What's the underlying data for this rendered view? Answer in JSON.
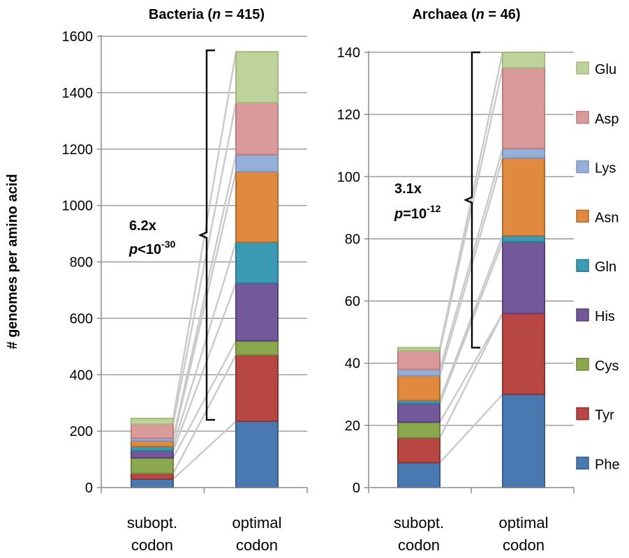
{
  "figure": {
    "ylabel": "# genomes per amino acid"
  },
  "chart_data": [
    {
      "type": "bar",
      "stacked": true,
      "title_prefix": "Bacteria (",
      "title_italic": "n",
      "title_suffix": " = 415)",
      "categories": [
        "subopt. codon",
        "optimal codon"
      ],
      "category_lines": [
        [
          "subopt.",
          "codon"
        ],
        [
          "optimal",
          "codon"
        ]
      ],
      "ylim": [
        0,
        1600
      ],
      "yticks": [
        0,
        200,
        400,
        600,
        800,
        1000,
        1200,
        1400,
        1600
      ],
      "grid": true,
      "series": [
        {
          "name": "Phe",
          "values": [
            30,
            235
          ]
        },
        {
          "name": "Tyr",
          "values": [
            20,
            235
          ]
        },
        {
          "name": "Cys",
          "values": [
            55,
            50
          ]
        },
        {
          "name": "His",
          "values": [
            25,
            205
          ]
        },
        {
          "name": "Gln",
          "values": [
            15,
            145
          ]
        },
        {
          "name": "Asn",
          "values": [
            20,
            250
          ]
        },
        {
          "name": "Lys",
          "values": [
            10,
            60
          ]
        },
        {
          "name": "Asp",
          "values": [
            50,
            185
          ]
        },
        {
          "name": "Glu",
          "values": [
            20,
            180
          ]
        }
      ],
      "annotation": {
        "fold": "6.2x",
        "p_prefix": "p",
        "p_op": "<10",
        "p_exp": "-30",
        "bracket_range": [
          240,
          1550
        ]
      }
    },
    {
      "type": "bar",
      "stacked": true,
      "title_prefix": "Archaea (",
      "title_italic": "n",
      "title_suffix": " = 46)",
      "categories": [
        "subopt. codon",
        "optimal codon"
      ],
      "category_lines": [
        [
          "subopt.",
          "codon"
        ],
        [
          "optimal",
          "codon"
        ]
      ],
      "ylim": [
        0,
        140
      ],
      "yticks": [
        0,
        20,
        40,
        60,
        80,
        100,
        120,
        140
      ],
      "grid": true,
      "series": [
        {
          "name": "Phe",
          "values": [
            8,
            30
          ]
        },
        {
          "name": "Tyr",
          "values": [
            8,
            26
          ]
        },
        {
          "name": "Cys",
          "values": [
            5,
            0
          ]
        },
        {
          "name": "His",
          "values": [
            6,
            23
          ]
        },
        {
          "name": "Gln",
          "values": [
            1,
            2
          ]
        },
        {
          "name": "Asn",
          "values": [
            8,
            25
          ]
        },
        {
          "name": "Lys",
          "values": [
            2,
            3
          ]
        },
        {
          "name": "Asp",
          "values": [
            6,
            26
          ]
        },
        {
          "name": "Glu",
          "values": [
            1,
            5
          ]
        }
      ],
      "annotation": {
        "fold": "3.1x",
        "p_prefix": "p",
        "p_op": "=10",
        "p_exp": "-12",
        "bracket_range": [
          45,
          140
        ]
      }
    }
  ],
  "legend": {
    "placement": "right",
    "entries": [
      "Glu",
      "Asp",
      "Lys",
      "Asn",
      "Gln",
      "His",
      "Cys",
      "Tyr",
      "Phe"
    ]
  },
  "colors": {
    "Phe": {
      "fill": "#4a78b0",
      "stroke": "#355d8d"
    },
    "Tyr": {
      "fill": "#b84744",
      "stroke": "#8e3331"
    },
    "Cys": {
      "fill": "#8ca84e",
      "stroke": "#6c853a"
    },
    "His": {
      "fill": "#73599a",
      "stroke": "#573f7a"
    },
    "Gln": {
      "fill": "#3b9bb5",
      "stroke": "#2a7a90"
    },
    "Asn": {
      "fill": "#e08a3f",
      "stroke": "#b5692a"
    },
    "Lys": {
      "fill": "#96afd8",
      "stroke": "#7a95c4"
    },
    "Asp": {
      "fill": "#d99a9a",
      "stroke": "#c07c7c"
    },
    "Glu": {
      "fill": "#bdd39b",
      "stroke": "#a0ba7c"
    },
    "grid": "#8c8c8c",
    "connector": "#c9c9c9"
  }
}
